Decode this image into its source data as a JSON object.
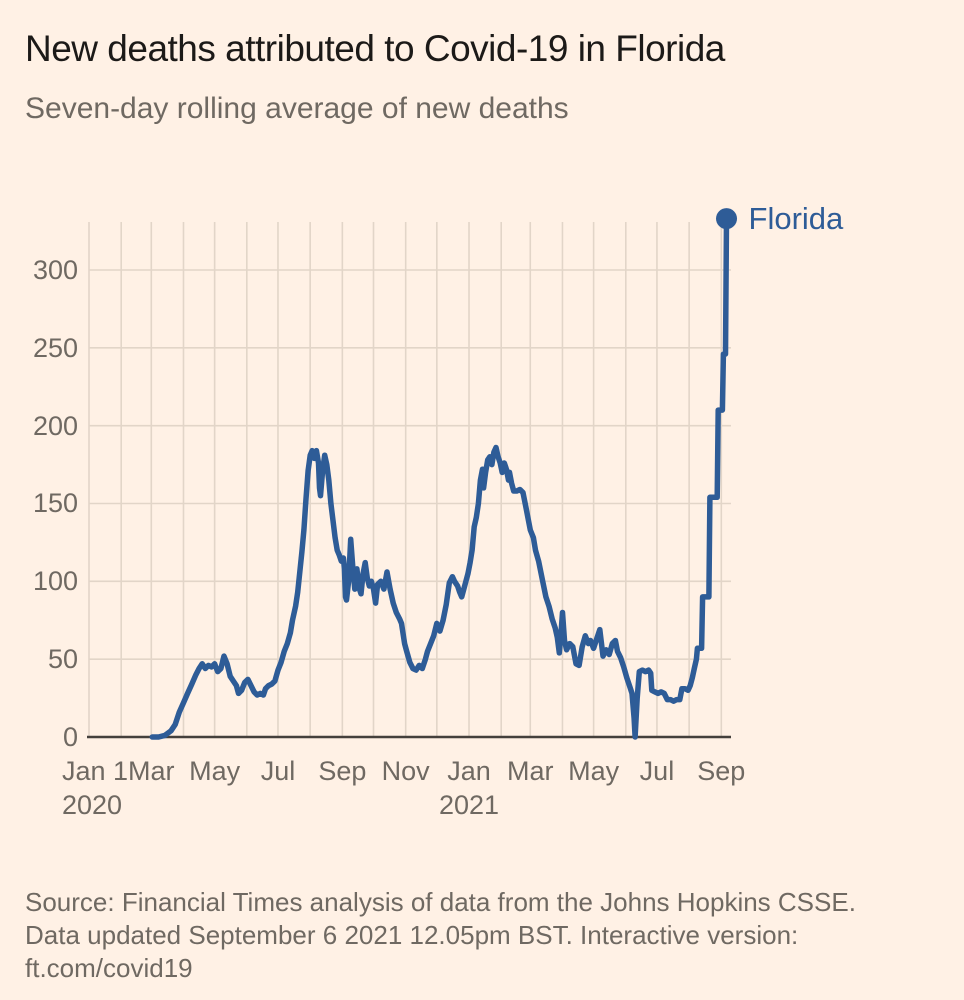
{
  "header": {
    "title": "New deaths attributed to Covid-19 in Florida",
    "subtitle": "Seven-day rolling average of new deaths"
  },
  "legend": {
    "label": "Florida"
  },
  "footer": {
    "line1": "Source: Financial Times analysis of data from the Johns Hopkins CSSE.",
    "line2": "Data updated September 6 2021 12.05pm BST. Interactive version:",
    "line3": "ft.com/covid19"
  },
  "colors": {
    "background": "#fff1e5",
    "line_blue": "#2e5c97",
    "grid": "#e2d5c8",
    "axis": "#44403c",
    "title_text": "#1c1a18",
    "muted_text": "#6f6962"
  },
  "chart_data": {
    "type": "line",
    "title": "New deaths attributed to Covid-19 in Florida",
    "subtitle": "Seven-day rolling average of new deaths",
    "xlabel": "",
    "ylabel": "",
    "ylim": [
      0,
      340
    ],
    "grid": true,
    "legend_position": "end-of-line",
    "y_ticks": [
      0,
      50,
      100,
      150,
      200,
      250,
      300
    ],
    "x_grid_dates": [
      "2020-01-01",
      "2020-02-01",
      "2020-03-01",
      "2020-04-01",
      "2020-05-01",
      "2020-06-01",
      "2020-07-01",
      "2020-08-01",
      "2020-09-01",
      "2020-10-01",
      "2020-11-01",
      "2020-12-01",
      "2021-01-01",
      "2021-02-01",
      "2021-03-01",
      "2021-04-01",
      "2021-05-01",
      "2021-06-01",
      "2021-07-01",
      "2021-08-01",
      "2021-09-01"
    ],
    "x_ticks": [
      {
        "date": "2020-01-01",
        "label": "Jan 1",
        "sublabel": "2020"
      },
      {
        "date": "2020-03-01",
        "label": "Mar",
        "sublabel": ""
      },
      {
        "date": "2020-05-01",
        "label": "May",
        "sublabel": ""
      },
      {
        "date": "2020-07-01",
        "label": "Jul",
        "sublabel": ""
      },
      {
        "date": "2020-09-01",
        "label": "Sep",
        "sublabel": ""
      },
      {
        "date": "2020-11-01",
        "label": "Nov",
        "sublabel": ""
      },
      {
        "date": "2021-01-01",
        "label": "Jan",
        "sublabel": "2021"
      },
      {
        "date": "2021-03-01",
        "label": "Mar",
        "sublabel": ""
      },
      {
        "date": "2021-05-01",
        "label": "May",
        "sublabel": ""
      },
      {
        "date": "2021-07-01",
        "label": "Jul",
        "sublabel": ""
      },
      {
        "date": "2021-09-01",
        "label": "Sep",
        "sublabel": ""
      }
    ],
    "series": [
      {
        "name": "Florida",
        "points": [
          [
            "2020-03-02",
            0
          ],
          [
            "2020-03-08",
            0
          ],
          [
            "2020-03-14",
            1
          ],
          [
            "2020-03-20",
            4
          ],
          [
            "2020-03-24",
            8
          ],
          [
            "2020-03-28",
            16
          ],
          [
            "2020-04-01",
            22
          ],
          [
            "2020-04-05",
            28
          ],
          [
            "2020-04-09",
            34
          ],
          [
            "2020-04-13",
            40
          ],
          [
            "2020-04-16",
            44
          ],
          [
            "2020-04-19",
            47
          ],
          [
            "2020-04-22",
            44
          ],
          [
            "2020-04-25",
            46
          ],
          [
            "2020-04-28",
            45
          ],
          [
            "2020-05-01",
            47
          ],
          [
            "2020-05-04",
            42
          ],
          [
            "2020-05-07",
            44
          ],
          [
            "2020-05-10",
            52
          ],
          [
            "2020-05-13",
            47
          ],
          [
            "2020-05-16",
            39
          ],
          [
            "2020-05-19",
            36
          ],
          [
            "2020-05-22",
            33
          ],
          [
            "2020-05-24",
            28
          ],
          [
            "2020-05-27",
            30
          ],
          [
            "2020-05-30",
            35
          ],
          [
            "2020-06-02",
            37
          ],
          [
            "2020-06-05",
            33
          ],
          [
            "2020-06-08",
            29
          ],
          [
            "2020-06-11",
            27
          ],
          [
            "2020-06-14",
            28
          ],
          [
            "2020-06-17",
            27
          ],
          [
            "2020-06-19",
            31
          ],
          [
            "2020-06-22",
            33
          ],
          [
            "2020-06-25",
            34
          ],
          [
            "2020-06-28",
            36
          ],
          [
            "2020-07-01",
            43
          ],
          [
            "2020-07-04",
            48
          ],
          [
            "2020-07-07",
            55
          ],
          [
            "2020-07-10",
            60
          ],
          [
            "2020-07-13",
            67
          ],
          [
            "2020-07-15",
            75
          ],
          [
            "2020-07-18",
            84
          ],
          [
            "2020-07-20",
            93
          ],
          [
            "2020-07-22",
            106
          ],
          [
            "2020-07-24",
            119
          ],
          [
            "2020-07-26",
            133
          ],
          [
            "2020-07-28",
            153
          ],
          [
            "2020-07-30",
            171
          ],
          [
            "2020-08-01",
            181
          ],
          [
            "2020-08-03",
            184
          ],
          [
            "2020-08-05",
            179
          ],
          [
            "2020-08-07",
            184
          ],
          [
            "2020-08-09",
            176
          ],
          [
            "2020-08-10",
            160
          ],
          [
            "2020-08-11",
            155
          ],
          [
            "2020-08-13",
            171
          ],
          [
            "2020-08-15",
            181
          ],
          [
            "2020-08-17",
            175
          ],
          [
            "2020-08-19",
            165
          ],
          [
            "2020-08-21",
            150
          ],
          [
            "2020-08-23",
            139
          ],
          [
            "2020-08-25",
            128
          ],
          [
            "2020-08-27",
            120
          ],
          [
            "2020-08-29",
            117
          ],
          [
            "2020-08-31",
            113
          ],
          [
            "2020-09-02",
            115
          ],
          [
            "2020-09-03",
            108
          ],
          [
            "2020-09-04",
            90
          ],
          [
            "2020-09-05",
            88
          ],
          [
            "2020-09-07",
            100
          ],
          [
            "2020-09-09",
            127
          ],
          [
            "2020-09-11",
            110
          ],
          [
            "2020-09-13",
            95
          ],
          [
            "2020-09-15",
            108
          ],
          [
            "2020-09-17",
            96
          ],
          [
            "2020-09-19",
            92
          ],
          [
            "2020-09-21",
            105
          ],
          [
            "2020-09-23",
            112
          ],
          [
            "2020-09-25",
            102
          ],
          [
            "2020-09-27",
            97
          ],
          [
            "2020-09-29",
            100
          ],
          [
            "2020-10-01",
            95
          ],
          [
            "2020-10-03",
            86
          ],
          [
            "2020-10-05",
            98
          ],
          [
            "2020-10-08",
            100
          ],
          [
            "2020-10-11",
            95
          ],
          [
            "2020-10-14",
            106
          ],
          [
            "2020-10-17",
            95
          ],
          [
            "2020-10-20",
            86
          ],
          [
            "2020-10-23",
            80
          ],
          [
            "2020-10-26",
            76
          ],
          [
            "2020-10-28",
            73
          ],
          [
            "2020-10-31",
            60
          ],
          [
            "2020-11-02",
            55
          ],
          [
            "2020-11-05",
            48
          ],
          [
            "2020-11-08",
            44
          ],
          [
            "2020-11-11",
            43
          ],
          [
            "2020-11-14",
            46
          ],
          [
            "2020-11-17",
            44
          ],
          [
            "2020-11-20",
            50
          ],
          [
            "2020-11-22",
            55
          ],
          [
            "2020-11-25",
            60
          ],
          [
            "2020-11-28",
            65
          ],
          [
            "2020-12-01",
            73
          ],
          [
            "2020-12-04",
            68
          ],
          [
            "2020-12-07",
            75
          ],
          [
            "2020-12-10",
            85
          ],
          [
            "2020-12-13",
            99
          ],
          [
            "2020-12-16",
            103
          ],
          [
            "2020-12-18",
            100
          ],
          [
            "2020-12-21",
            97
          ],
          [
            "2020-12-23",
            93
          ],
          [
            "2020-12-25",
            90
          ],
          [
            "2020-12-27",
            95
          ],
          [
            "2020-12-29",
            100
          ],
          [
            "2020-12-31",
            105
          ],
          [
            "2021-01-02",
            112
          ],
          [
            "2021-01-04",
            120
          ],
          [
            "2021-01-06",
            135
          ],
          [
            "2021-01-08",
            141
          ],
          [
            "2021-01-10",
            150
          ],
          [
            "2021-01-12",
            165
          ],
          [
            "2021-01-14",
            172
          ],
          [
            "2021-01-15",
            160
          ],
          [
            "2021-01-17",
            170
          ],
          [
            "2021-01-19",
            178
          ],
          [
            "2021-01-21",
            180
          ],
          [
            "2021-01-23",
            175
          ],
          [
            "2021-01-25",
            183
          ],
          [
            "2021-01-27",
            186
          ],
          [
            "2021-01-29",
            180
          ],
          [
            "2021-01-31",
            176
          ],
          [
            "2021-02-02",
            170
          ],
          [
            "2021-02-04",
            176
          ],
          [
            "2021-02-06",
            172
          ],
          [
            "2021-02-08",
            165
          ],
          [
            "2021-02-09",
            170
          ],
          [
            "2021-02-11",
            163
          ],
          [
            "2021-02-13",
            158
          ],
          [
            "2021-02-16",
            158
          ],
          [
            "2021-02-19",
            159
          ],
          [
            "2021-02-22",
            157
          ],
          [
            "2021-02-25",
            147
          ],
          [
            "2021-02-27",
            140
          ],
          [
            "2021-03-01",
            133
          ],
          [
            "2021-03-04",
            128
          ],
          [
            "2021-03-06",
            120
          ],
          [
            "2021-03-09",
            113
          ],
          [
            "2021-03-13",
            100
          ],
          [
            "2021-03-16",
            90
          ],
          [
            "2021-03-19",
            84
          ],
          [
            "2021-03-22",
            76
          ],
          [
            "2021-03-25",
            70
          ],
          [
            "2021-03-27",
            64
          ],
          [
            "2021-03-29",
            54
          ],
          [
            "2021-03-31",
            70
          ],
          [
            "2021-04-01",
            80
          ],
          [
            "2021-04-03",
            62
          ],
          [
            "2021-04-05",
            56
          ],
          [
            "2021-04-08",
            60
          ],
          [
            "2021-04-11",
            58
          ],
          [
            "2021-04-14",
            47
          ],
          [
            "2021-04-17",
            46
          ],
          [
            "2021-04-20",
            58
          ],
          [
            "2021-04-23",
            65
          ],
          [
            "2021-04-26",
            60
          ],
          [
            "2021-04-28",
            62
          ],
          [
            "2021-05-01",
            57
          ],
          [
            "2021-05-04",
            63
          ],
          [
            "2021-05-07",
            69
          ],
          [
            "2021-05-10",
            52
          ],
          [
            "2021-05-13",
            56
          ],
          [
            "2021-05-16",
            53
          ],
          [
            "2021-05-19",
            60
          ],
          [
            "2021-05-22",
            62
          ],
          [
            "2021-05-24",
            55
          ],
          [
            "2021-05-27",
            51
          ],
          [
            "2021-05-30",
            45
          ],
          [
            "2021-06-02",
            38
          ],
          [
            "2021-06-05",
            32
          ],
          [
            "2021-06-07",
            28
          ],
          [
            "2021-06-09",
            12
          ],
          [
            "2021-06-10",
            0
          ],
          [
            "2021-06-12",
            25
          ],
          [
            "2021-06-14",
            42
          ],
          [
            "2021-06-17",
            43
          ],
          [
            "2021-06-20",
            42
          ],
          [
            "2021-06-23",
            43
          ],
          [
            "2021-06-25",
            41
          ],
          [
            "2021-06-26",
            30
          ],
          [
            "2021-06-29",
            29
          ],
          [
            "2021-07-02",
            28
          ],
          [
            "2021-07-05",
            29
          ],
          [
            "2021-07-08",
            28
          ],
          [
            "2021-07-11",
            24
          ],
          [
            "2021-07-14",
            24
          ],
          [
            "2021-07-17",
            23
          ],
          [
            "2021-07-20",
            24
          ],
          [
            "2021-07-23",
            24
          ],
          [
            "2021-07-25",
            31
          ],
          [
            "2021-07-28",
            31
          ],
          [
            "2021-07-31",
            30
          ],
          [
            "2021-08-02",
            33
          ],
          [
            "2021-08-04",
            38
          ],
          [
            "2021-08-06",
            44
          ],
          [
            "2021-08-08",
            50
          ],
          [
            "2021-08-09",
            57
          ],
          [
            "2021-08-13",
            57
          ],
          [
            "2021-08-14",
            90
          ],
          [
            "2021-08-20",
            90
          ],
          [
            "2021-08-21",
            154
          ],
          [
            "2021-08-28",
            154
          ],
          [
            "2021-08-29",
            210
          ],
          [
            "2021-09-02",
            210
          ],
          [
            "2021-09-03",
            246
          ],
          [
            "2021-09-05",
            246
          ],
          [
            "2021-09-06",
            333
          ]
        ]
      }
    ]
  }
}
